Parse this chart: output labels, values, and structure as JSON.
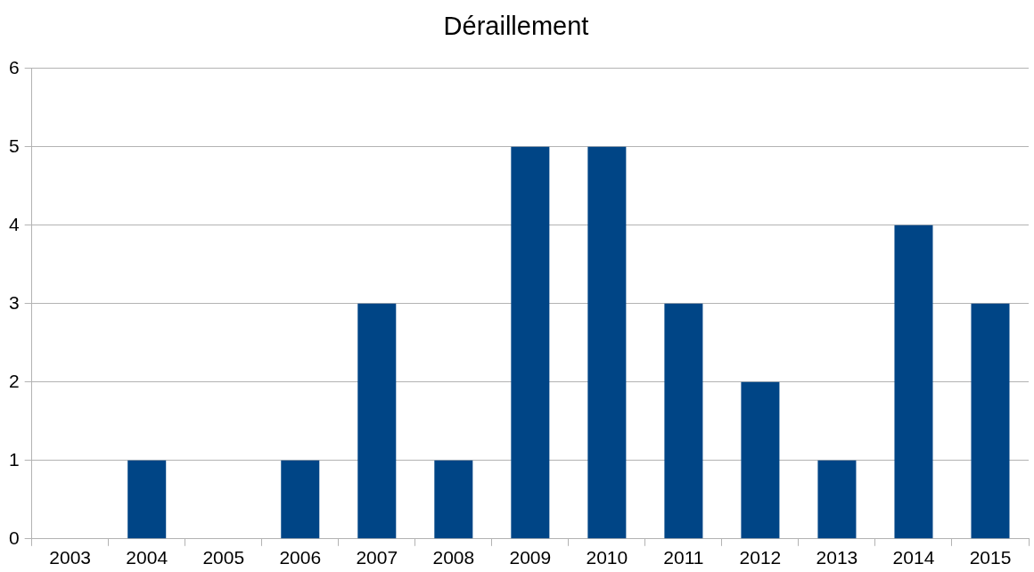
{
  "chart_data": {
    "type": "bar",
    "title": "Déraillement",
    "categories": [
      "2003",
      "2004",
      "2005",
      "2006",
      "2007",
      "2008",
      "2009",
      "2010",
      "2011",
      "2012",
      "2013",
      "2014",
      "2015"
    ],
    "values": [
      0,
      1,
      0,
      1,
      3,
      1,
      5,
      5,
      3,
      2,
      1,
      4,
      3
    ],
    "color": "#004586",
    "ylim": [
      0,
      6
    ],
    "yticks": [
      0,
      1,
      2,
      3,
      4,
      5,
      6
    ],
    "grid": "y",
    "legend": false
  }
}
